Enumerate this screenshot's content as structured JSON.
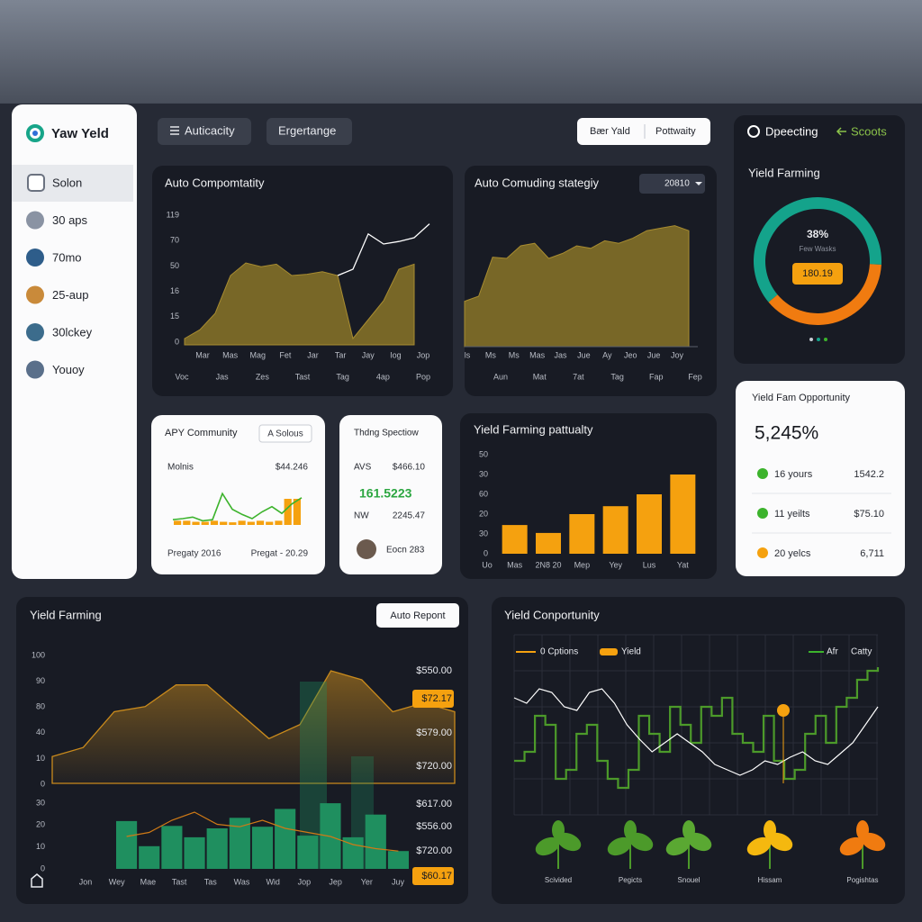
{
  "sidebar": {
    "brand": "Yaw Yeld",
    "items": [
      "Solon",
      "30 aps",
      "70mo",
      "25-aup",
      "30lckey",
      "Youoy"
    ]
  },
  "tabs": [
    "Auticacity",
    "Ergertange"
  ],
  "toggle": [
    "Bær Yald",
    "Pottwaity"
  ],
  "status": {
    "left": "Dpeecting",
    "right": "Scoots"
  },
  "auto_chart": {
    "type": "area",
    "title": "Auto Compomtatity",
    "y_labels": [
      "119",
      "70",
      "50",
      "16",
      "15",
      "0"
    ],
    "x_labels": [
      "Mar",
      "Mas",
      "Mag",
      "Fet",
      "Jar",
      "Tar",
      "Jay",
      "Iog",
      "Jop"
    ],
    "x_labels_2": [
      "Voc",
      "Jas",
      "Zes",
      "Tast",
      "Tag",
      "4ap",
      "Pop"
    ],
    "ylim": [
      0,
      100
    ],
    "series": [
      {
        "color": "#8a7428",
        "values": [
          5,
          12,
          25,
          55,
          65,
          62,
          64,
          55,
          56,
          58,
          55,
          5,
          20,
          35,
          60,
          64,
          null
        ]
      },
      {
        "color": "#ffffff",
        "values": [
          null,
          null,
          null,
          null,
          null,
          null,
          null,
          null,
          null,
          null,
          55,
          60,
          88,
          80,
          82,
          85,
          96
        ]
      }
    ]
  },
  "strategy_chart": {
    "type": "area",
    "title": "Auto Comuding stategiy",
    "select": "20810",
    "x_labels": [
      "ls",
      "Ms",
      "Ms",
      "Mas",
      "Jas",
      "Jue",
      "Ay",
      "Jeo",
      "Jue",
      "Joy"
    ],
    "x_labels_2": [
      "Aun",
      "Mat",
      "7at",
      "Tag",
      "Fap",
      "Fep"
    ],
    "ylim": [
      0,
      100
    ],
    "color": "#8a7428",
    "values": [
      36,
      40,
      71,
      70,
      80,
      82,
      70,
      74,
      80,
      78,
      84,
      82,
      86,
      92,
      94,
      96,
      92
    ]
  },
  "donut": {
    "type": "pie",
    "title": "Yield Farming",
    "center_label": "38%",
    "caption": "Few Wasks",
    "badge": "180.19",
    "values": [
      62,
      38
    ],
    "colors": [
      "#14a38b",
      "#f07b10"
    ]
  },
  "apy_card": {
    "title": "APY Community",
    "button": "A Solous",
    "label": "Molnis",
    "value": "$44.246",
    "footer": [
      "Pregaty 2016",
      "Pregat - 20.29"
    ],
    "ylim": [
      0,
      100
    ],
    "line": {
      "color": "#3cb32c",
      "values": [
        10,
        12,
        15,
        8,
        10,
        60,
        30,
        20,
        12,
        25,
        35,
        22,
        40,
        52
      ]
    },
    "bars": {
      "color": "#f5a10f",
      "values": [
        8,
        8,
        6,
        6,
        8,
        6,
        5,
        8,
        6,
        8,
        6,
        8,
        50,
        50
      ]
    }
  },
  "spec_card": {
    "title": "Thdng Spectiow",
    "rows": [
      [
        "AVS",
        "$466.10"
      ],
      [
        "NW",
        "2245.47"
      ]
    ],
    "highlight": "161.5223",
    "footer": "Eocn 283"
  },
  "bar_chart": {
    "type": "bar",
    "title": "Yield Farming pattualty",
    "lead_label": "Uo",
    "y_labels": [
      "50",
      "30",
      "60",
      "20",
      "30",
      "0"
    ],
    "categories": [
      "Mas",
      "2N8 20",
      "Mep",
      "Yey",
      "Lus",
      "Yat"
    ],
    "values": [
      29,
      21,
      40,
      48,
      60,
      80
    ],
    "ylim": [
      0,
      100
    ],
    "color": "#f5a10f"
  },
  "opportunity_card": {
    "title": "Yield Fam Opportunity",
    "value": "5,245%",
    "rows": [
      [
        "16 yours",
        "1542.2"
      ],
      [
        "11 yeilts",
        "$75.10"
      ],
      [
        "20 yelcs",
        "6,711"
      ]
    ]
  },
  "farming_chart": {
    "type": "area",
    "title": "Yield Farming",
    "button": "Auto Repont",
    "y_labels": [
      "100",
      "90",
      "80",
      "40",
      "10",
      "0"
    ],
    "y_labels_2": [
      "30",
      "20",
      "10",
      "0"
    ],
    "x_labels": [
      "Jon",
      "Wey",
      "Mae",
      "Tast",
      "Tas",
      "Was",
      "Wid",
      "Jop",
      "Jep",
      "Yer",
      "Juy"
    ],
    "right_labels": [
      {
        "text": "$550.00"
      },
      {
        "text": "$72.17",
        "highlight": true
      },
      {
        "text": "$579.00"
      },
      {
        "text": "$720.00"
      },
      {
        "text": "$617.00"
      },
      {
        "text": "$556.00"
      },
      {
        "text": "$720.00"
      },
      {
        "text": "$60.17",
        "highlight": true
      }
    ],
    "ylim": [
      0,
      100
    ],
    "area": {
      "color": "#c98a1c",
      "values": [
        21,
        28,
        56,
        60,
        77,
        77,
        56,
        35,
        46,
        88,
        81,
        56,
        63,
        56
      ]
    },
    "bars": {
      "color": "#1f8f5f",
      "values": [
        59,
        28,
        53,
        39,
        50,
        63,
        52,
        74,
        41,
        81,
        39,
        67,
        22
      ]
    },
    "line": {
      "color": "#d07a16",
      "values": [
        40,
        45,
        60,
        70,
        55,
        52,
        60,
        50,
        45,
        40,
        30,
        25,
        22
      ]
    }
  },
  "opportunity_chart": {
    "type": "line",
    "title": "Yield Conportunity",
    "legend": [
      "0 Cptions",
      "Yield",
      "Afr",
      "Catty"
    ],
    "ylim": [
      0,
      100
    ],
    "series": [
      {
        "color": "#4c9a2a",
        "values": [
          30,
          35,
          55,
          50,
          20,
          25,
          45,
          50,
          30,
          20,
          15,
          25,
          55,
          45,
          35,
          60,
          50,
          40,
          60,
          55,
          65,
          45,
          40,
          35,
          55,
          30,
          20,
          25,
          45,
          55,
          40,
          60,
          65,
          75,
          80,
          82
        ]
      },
      {
        "color": "#ffffff",
        "values": [
          65,
          62,
          70,
          68,
          60,
          58,
          68,
          70,
          62,
          50,
          42,
          35,
          40,
          45,
          40,
          35,
          28,
          25,
          22,
          25,
          30,
          28,
          32,
          35,
          30,
          28,
          34,
          40,
          50,
          60
        ]
      }
    ],
    "plants": [
      "Scivided",
      "Pegicts",
      "Snouel",
      "Hissam",
      "Pogishtas"
    ]
  }
}
